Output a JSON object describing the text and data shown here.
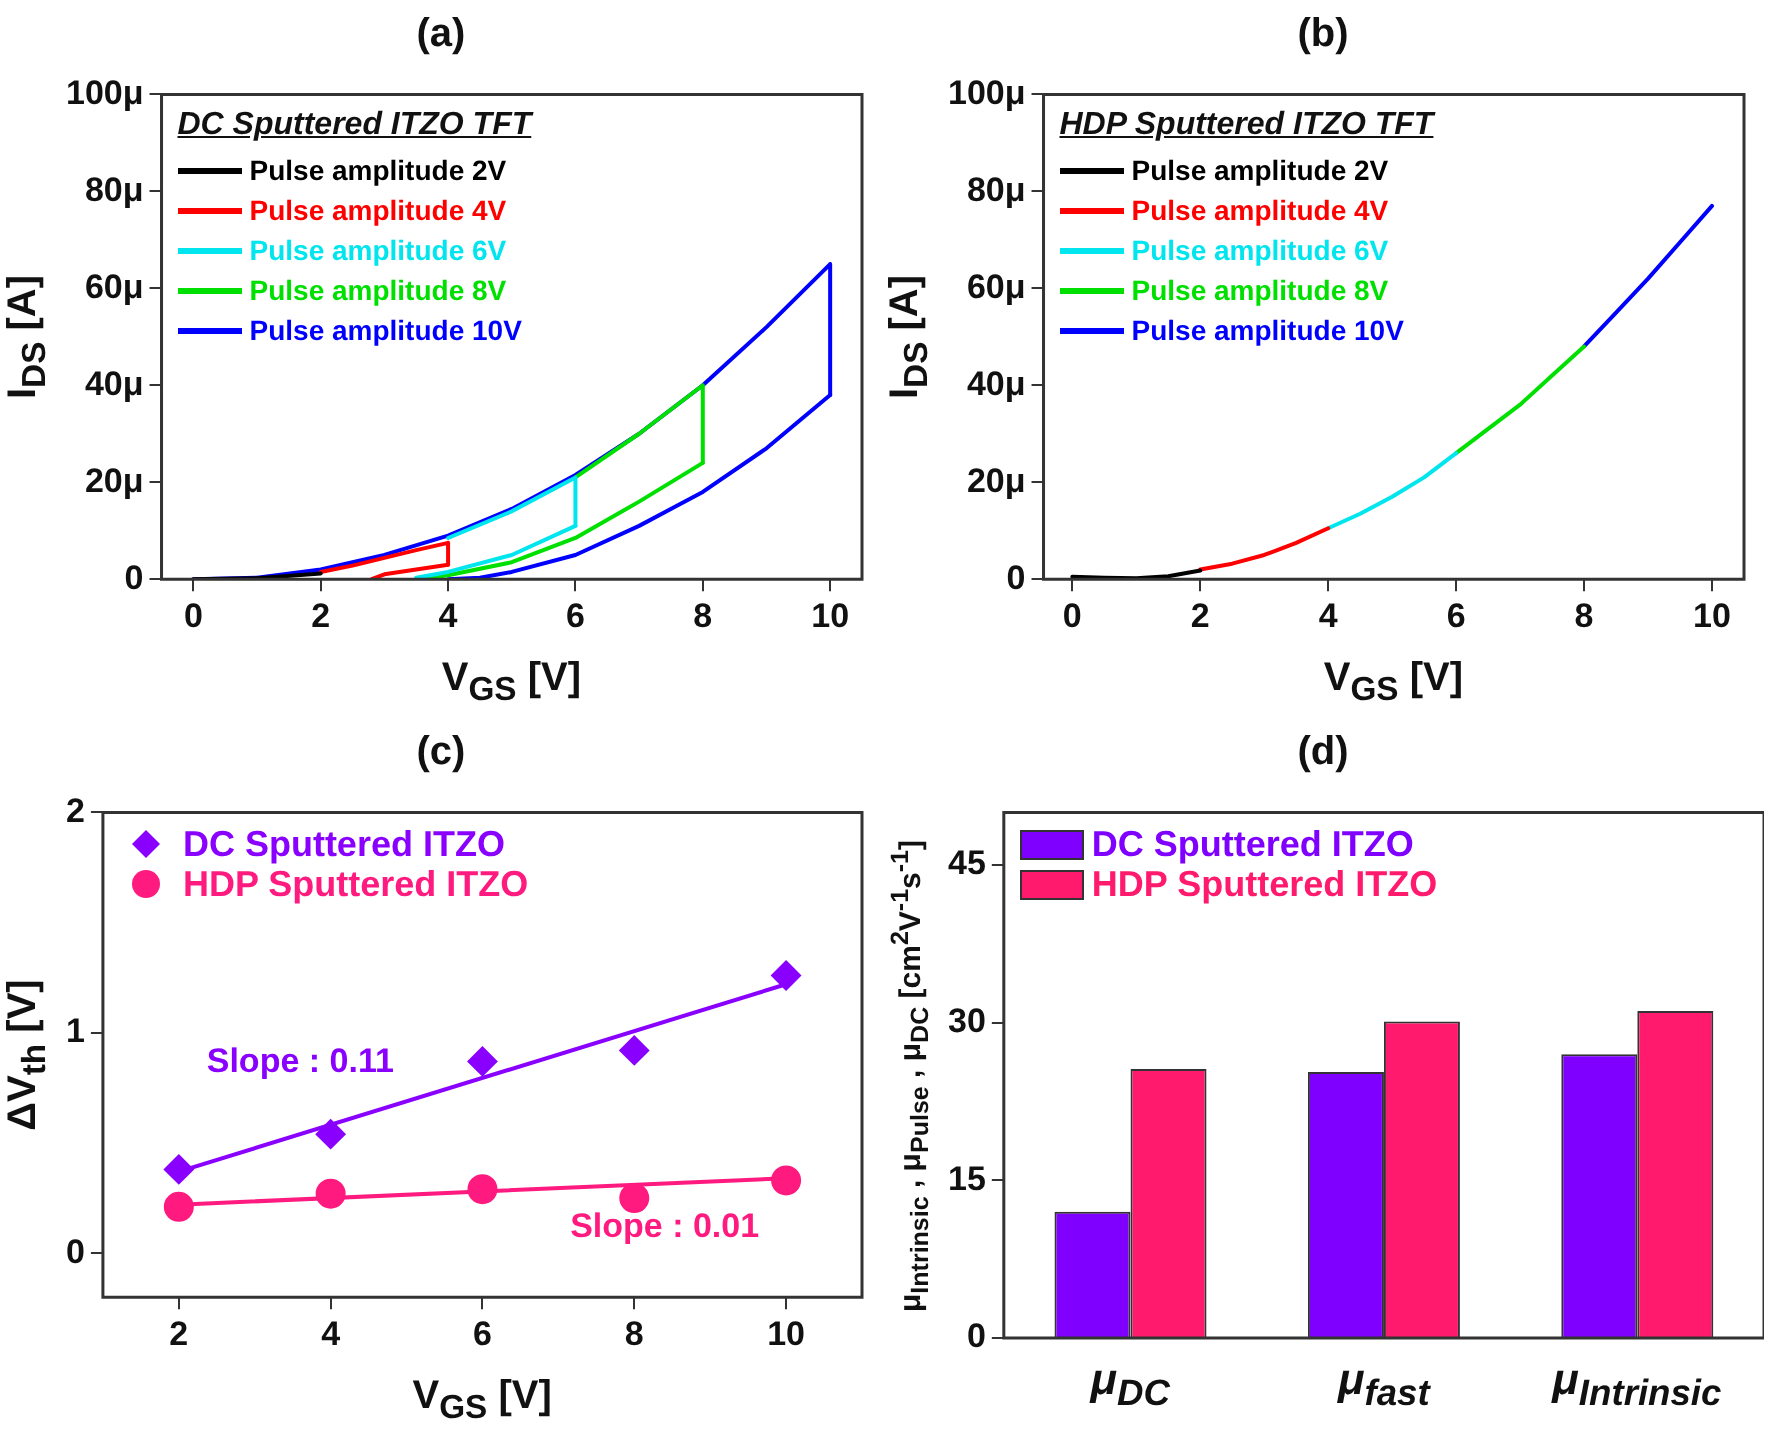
{
  "chart_data": [
    {
      "type": "line",
      "title": "(a)",
      "xlabel": "V$_{GS}$ [V]",
      "ylabel": "I$_{DS}$ [A]",
      "legend_title": "DC Sputtered ITZO TFT",
      "legend": "top left",
      "grid": false,
      "marker": "none",
      "xlim": [
        -0.5,
        10.5
      ],
      "xticks": [
        0,
        2,
        4,
        6,
        8,
        10
      ],
      "ylim": [
        0,
        100
      ],
      "yticks": [
        0,
        {
          "value": 20,
          "label": "20μ"
        },
        {
          "value": 40,
          "label": "40μ"
        },
        {
          "value": 60,
          "label": "60μ"
        },
        {
          "value": 80,
          "label": "80μ"
        },
        {
          "value": 100,
          "label": "100μ"
        }
      ],
      "series": [
        {
          "name": "Pulse amplitude 2V",
          "color": "#000000",
          "x": [
            0,
            1,
            2
          ],
          "values": [
            0,
            0.2,
            1.2
          ]
        },
        {
          "name": "Pulse amplitude 4V",
          "color": "#ff0000",
          "x": [
            2,
            2.5,
            3,
            3.5,
            4,
            4
          ],
          "values": [
            1.5,
            2.8,
            4.4,
            6,
            7.5,
            3
          ]
        },
        {
          "name": "Pulse amplitude 6V",
          "color": "#00e5ee",
          "x": [
            4,
            5,
            6,
            6
          ],
          "values": [
            8.5,
            14,
            21,
            11
          ]
        },
        {
          "name": "Pulse amplitude 8V",
          "color": "#00e000",
          "x": [
            6,
            7,
            8,
            8
          ],
          "values": [
            21,
            30,
            40,
            24
          ]
        },
        {
          "name": "Pulse amplitude 10V",
          "color": "#0000ff",
          "x": [
            0,
            1,
            2,
            3,
            4,
            5,
            6,
            7,
            8,
            9,
            10,
            10
          ],
          "values": [
            0,
            0.3,
            2,
            5,
            9,
            14.5,
            21.5,
            30,
            40,
            52,
            65,
            38
          ]
        },
        {
          "type": "line",
          "color": "#ff0000",
          "x": [
            2.8,
            3,
            3.5,
            4
          ],
          "values": [
            0,
            1,
            2,
            3
          ]
        },
        {
          "type": "line",
          "color": "#00e5ee",
          "x": [
            3.5,
            4,
            5,
            6
          ],
          "values": [
            0.3,
            1.5,
            5,
            11
          ]
        },
        {
          "type": "line",
          "color": "#00e000",
          "x": [
            3.5,
            4,
            5,
            6,
            7,
            8
          ],
          "values": [
            0,
            0.8,
            3.5,
            8.5,
            16,
            24
          ]
        },
        {
          "type": "line",
          "color": "#0000ff",
          "x": [
            4,
            4.5,
            5,
            6,
            7,
            8,
            9,
            10
          ],
          "values": [
            0,
            0.3,
            1.5,
            5,
            11,
            18,
            27,
            38
          ]
        }
      ]
    },
    {
      "type": "line",
      "title": "(b)",
      "xlabel": "V$_{GS}$ [V]",
      "ylabel": "I$_{DS}$ [A]",
      "legend_title": "HDP Sputtered ITZO TFT",
      "legend": "top left",
      "grid": false,
      "marker": "none",
      "xlim": [
        -0.45,
        10.5
      ],
      "xticks": [
        0,
        2,
        4,
        6,
        8,
        10
      ],
      "ylim": [
        0,
        100
      ],
      "yticks": [
        0,
        {
          "value": 20,
          "label": "20μ"
        },
        {
          "value": 40,
          "label": "40μ"
        },
        {
          "value": 60,
          "label": "60μ"
        },
        {
          "value": 80,
          "label": "80μ"
        },
        {
          "value": 100,
          "label": "100μ"
        }
      ],
      "series": [
        {
          "name": "Pulse amplitude 2V",
          "color": "#000000",
          "x": [
            0,
            0.5,
            1,
            1.5,
            2
          ],
          "values": [
            0.5,
            0.3,
            0.2,
            0.6,
            1.8
          ]
        },
        {
          "name": "Pulse amplitude 4V",
          "color": "#ff0000",
          "x": [
            2,
            2.5,
            3,
            3.5,
            4
          ],
          "values": [
            2,
            3.2,
            5,
            7.5,
            10.5
          ]
        },
        {
          "name": "Pulse amplitude 6V",
          "color": "#00e5ee",
          "x": [
            4,
            4.5,
            5,
            5.5,
            6
          ],
          "values": [
            10.5,
            13.5,
            17,
            21,
            26
          ]
        },
        {
          "name": "Pulse amplitude 8V",
          "color": "#00e000",
          "x": [
            6,
            6.5,
            7,
            7.5,
            8
          ],
          "values": [
            26,
            31,
            36,
            42,
            48
          ]
        },
        {
          "name": "Pulse amplitude 10V",
          "color": "#0000ff",
          "x": [
            8,
            8.5,
            9,
            9.5,
            10
          ],
          "values": [
            48,
            55,
            62,
            69.5,
            77
          ]
        }
      ]
    },
    {
      "type": "scatter",
      "title": "(c)",
      "xlabel": "V$_{GS}$ [V]",
      "ylabel": "ΔV$_{th}$ [V]",
      "legend": "top left",
      "grid": false,
      "xlim": [
        1,
        11
      ],
      "xticks": [
        2,
        4,
        6,
        8,
        10
      ],
      "ylim": [
        -0.2,
        2
      ],
      "yticks": [
        0,
        1,
        2
      ],
      "series": [
        {
          "name": "DC Sputtered ITZO",
          "color": "#8a00ff",
          "marker": "diamond",
          "x": [
            2,
            4,
            6,
            8,
            10
          ],
          "values": [
            0.38,
            0.54,
            0.87,
            0.92,
            1.26
          ]
        },
        {
          "name": "HDP Sputtered ITZO",
          "color": "#ff1a7f",
          "marker": "circle",
          "x": [
            2,
            4,
            6,
            8,
            10
          ],
          "values": [
            0.21,
            0.27,
            0.29,
            0.25,
            0.33
          ]
        },
        {
          "name": "Slope : 0.11",
          "type": "line",
          "color": "#8a00ff",
          "marker": "none",
          "x": [
            2,
            10
          ],
          "values": [
            0.37,
            1.22
          ]
        },
        {
          "name": "Slope : 0.01",
          "type": "line",
          "color": "#ff1a7f",
          "marker": "none",
          "x": [
            2,
            10
          ],
          "values": [
            0.22,
            0.34
          ]
        }
      ]
    },
    {
      "type": "bar",
      "title": "(d)",
      "ylabel": "μ$_{Intrinsic}$ , μ$_{Pulse}$ , μ$_{DC}$ [cm$^{2}$V$^{-1}$s$^{-1}$]",
      "legend": "top left",
      "grid": false,
      "categories": [
        "μ$_{DC}$",
        "μ$_{fast}$",
        "μ$_{Intrinsic}$"
      ],
      "ylim": [
        0,
        50
      ],
      "yticks": [
        0,
        15,
        30,
        45
      ],
      "series": [
        {
          "name": "DC Sputtered ITZO",
          "color": "#7f00ff",
          "values": [
            12,
            25.3,
            27
          ]
        },
        {
          "name": "HDP Sputtered ITZO",
          "color": "#ff1a6e",
          "values": [
            25.6,
            30.1,
            31.1
          ]
        }
      ]
    }
  ]
}
